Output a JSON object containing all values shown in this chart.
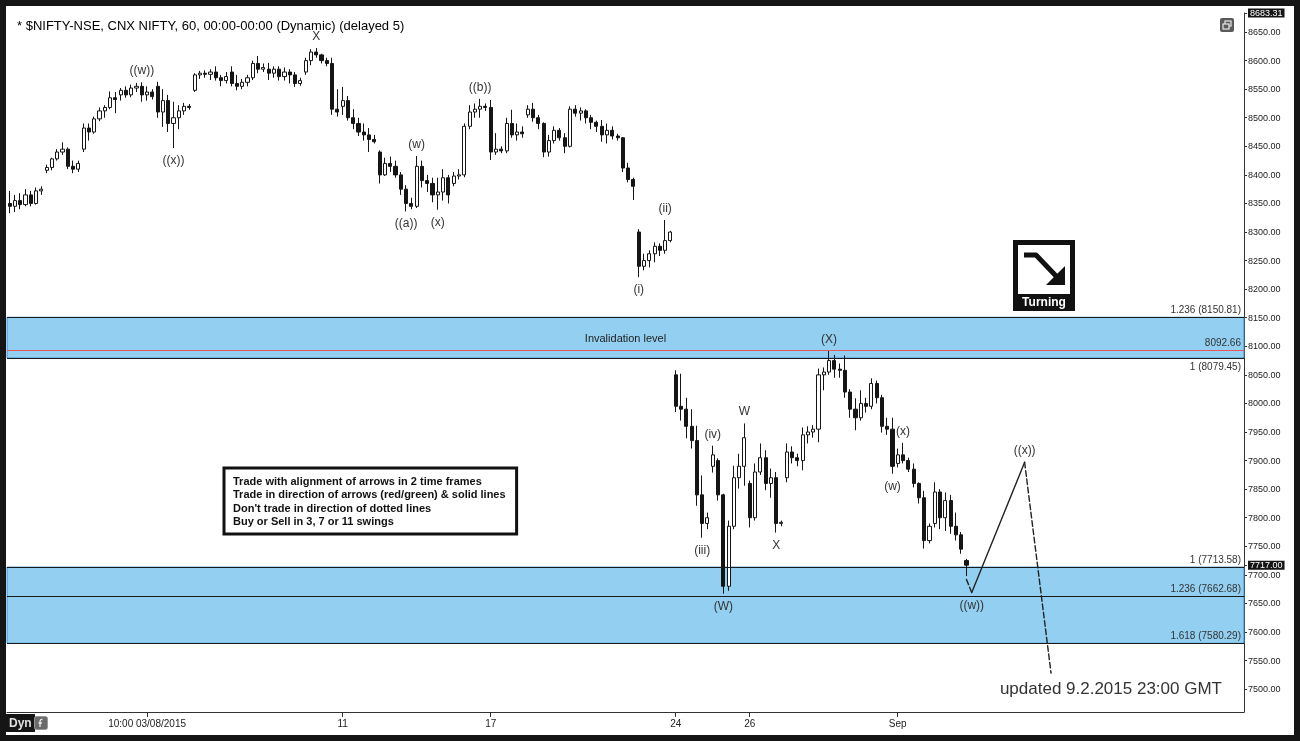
{
  "chart_data": {
    "type": "candlestick",
    "title": "* $NIFTY-NSE, CNX NIFTY, 60, 00:00-00:00 (Dynamic) (delayed 5)",
    "color": "#151515",
    "categories": [
      null,
      null,
      null,
      null,
      null,
      null,
      null,
      null,
      null,
      null,
      null,
      null,
      null,
      null,
      null,
      null,
      null,
      null,
      null,
      null,
      null,
      null,
      null,
      null,
      null,
      null,
      "10:00 03/08/2015",
      null,
      null,
      null,
      null,
      null,
      null,
      null,
      null,
      null,
      null,
      null,
      null,
      null,
      null,
      null,
      null,
      null,
      null,
      null,
      null,
      null,
      null,
      null,
      null,
      null,
      null,
      null,
      null,
      null,
      null,
      null,
      null,
      null,
      null,
      null,
      null,
      "11",
      null,
      null,
      null,
      null,
      null,
      null,
      null,
      null,
      null,
      null,
      null,
      null,
      null,
      null,
      null,
      null,
      null,
      null,
      null,
      null,
      null,
      null,
      null,
      null,
      null,
      null,
      null,
      "17",
      null,
      null,
      null,
      null,
      null,
      null,
      null,
      null,
      null,
      null,
      null,
      null,
      null,
      null,
      null,
      null,
      null,
      null,
      null,
      null,
      null,
      null,
      null,
      null,
      null,
      null,
      null,
      null,
      null,
      null,
      null,
      null,
      null,
      null,
      "24",
      null,
      null,
      null,
      null,
      null,
      null,
      null,
      null,
      null,
      null,
      null,
      null,
      null,
      "26",
      null,
      null,
      null,
      null,
      null,
      null,
      null,
      null,
      null,
      null,
      null,
      null,
      null,
      null,
      null,
      null,
      null,
      null,
      null,
      null,
      null,
      null,
      null,
      null,
      null,
      null,
      null,
      "Sep",
      null,
      null,
      null,
      null,
      null,
      null,
      null,
      null,
      null,
      null,
      null,
      null,
      null,
      null,
      null,
      null,
      null,
      null,
      null,
      null,
      null,
      null,
      null,
      null,
      null,
      null,
      null,
      null,
      null,
      null,
      null,
      null,
      null,
      null,
      null,
      null,
      null,
      null,
      null,
      null,
      null,
      null,
      null,
      null,
      null,
      null,
      null,
      null,
      null,
      null,
      null,
      null,
      null,
      null,
      null,
      null,
      null,
      null,
      null,
      null,
      null,
      null,
      null,
      null,
      null
    ],
    "ohlc": [
      [
        8350,
        8372,
        8333,
        8345
      ],
      [
        8345,
        8365,
        8335,
        8355
      ],
      [
        8355,
        8368,
        8340,
        8348
      ],
      [
        8348,
        8375,
        8345,
        8365
      ],
      [
        8365,
        8372,
        8345,
        8350
      ],
      [
        8350,
        8378,
        8348,
        8372
      ],
      [
        8372,
        8380,
        8365,
        8375
      ],
      [
        8408,
        8418,
        8403,
        8413
      ],
      [
        8413,
        8430,
        8408,
        8428
      ],
      [
        8428,
        8445,
        8425,
        8440
      ],
      [
        8440,
        8457,
        8435,
        8445
      ],
      [
        8445,
        8448,
        8410,
        8415
      ],
      [
        8415,
        8425,
        8403,
        8410
      ],
      [
        8410,
        8425,
        8405,
        8420
      ],
      [
        8445,
        8490,
        8440,
        8482
      ],
      [
        8482,
        8490,
        8460,
        8475
      ],
      [
        8475,
        8502,
        8472,
        8498
      ],
      [
        8498,
        8518,
        8494,
        8512
      ],
      [
        8512,
        8522,
        8500,
        8518
      ],
      [
        8518,
        8546,
        8515,
        8535
      ],
      [
        8535,
        8545,
        8508,
        8532
      ],
      [
        8540,
        8552,
        8530,
        8548
      ],
      [
        8548,
        8555,
        8535,
        8540
      ],
      [
        8540,
        8558,
        8536,
        8552
      ],
      [
        8552,
        8561,
        8545,
        8555
      ],
      [
        8555,
        8562,
        8528,
        8540
      ],
      [
        8540,
        8555,
        8530,
        8545
      ],
      [
        8545,
        8550,
        8532,
        8537
      ],
      [
        8555,
        8563,
        8500,
        8510
      ],
      [
        8510,
        8550,
        8484,
        8530
      ],
      [
        8530,
        8540,
        8475,
        8490
      ],
      [
        8490,
        8528,
        8447,
        8500
      ],
      [
        8500,
        8522,
        8480,
        8512
      ],
      [
        8512,
        8526,
        8505,
        8520
      ],
      [
        8520,
        8524,
        8514,
        8518
      ],
      [
        8548,
        8578,
        8545,
        8575
      ],
      [
        8575,
        8582,
        8568,
        8578
      ],
      [
        8578,
        8583,
        8570,
        8576
      ],
      [
        8576,
        8585,
        8566,
        8580
      ],
      [
        8580,
        8590,
        8565,
        8570
      ],
      [
        8570,
        8575,
        8555,
        8565
      ],
      [
        8565,
        8580,
        8560,
        8572
      ],
      [
        8580,
        8590,
        8555,
        8560
      ],
      [
        8560,
        8575,
        8548,
        8555
      ],
      [
        8555,
        8568,
        8550,
        8562
      ],
      [
        8562,
        8575,
        8555,
        8570
      ],
      [
        8570,
        8600,
        8566,
        8595
      ],
      [
        8595,
        8608,
        8578,
        8585
      ],
      [
        8585,
        8595,
        8580,
        8588
      ],
      [
        8585,
        8596,
        8566,
        8578
      ],
      [
        8578,
        8590,
        8570,
        8585
      ],
      [
        8585,
        8590,
        8565,
        8572
      ],
      [
        8572,
        8588,
        8565,
        8580
      ],
      [
        8580,
        8585,
        8560,
        8575
      ],
      [
        8575,
        8580,
        8554,
        8560
      ],
      [
        8560,
        8570,
        8556,
        8565
      ],
      [
        8580,
        8605,
        8575,
        8600
      ],
      [
        8600,
        8620,
        8592,
        8615
      ],
      [
        8615,
        8622,
        8605,
        8610
      ],
      [
        8610,
        8612,
        8595,
        8600
      ],
      [
        8600,
        8605,
        8590,
        8595
      ],
      [
        8595,
        8605,
        8505,
        8515
      ],
      [
        8515,
        8550,
        8502,
        8510
      ],
      [
        8520,
        8554,
        8505,
        8530
      ],
      [
        8530,
        8538,
        8495,
        8500
      ],
      [
        8500,
        8515,
        8480,
        8490
      ],
      [
        8490,
        8500,
        8468,
        8475
      ],
      [
        8475,
        8490,
        8460,
        8470
      ],
      [
        8470,
        8482,
        8440,
        8462
      ],
      [
        8462,
        8470,
        8455,
        8458
      ],
      [
        8440,
        8443,
        8385,
        8400
      ],
      [
        8400,
        8430,
        8398,
        8420
      ],
      [
        8420,
        8432,
        8405,
        8415
      ],
      [
        8415,
        8425,
        8395,
        8400
      ],
      [
        8400,
        8405,
        8365,
        8375
      ],
      [
        8375,
        8382,
        8336,
        8350
      ],
      [
        8350,
        8360,
        8340,
        8345
      ],
      [
        8345,
        8433,
        8342,
        8415
      ],
      [
        8415,
        8425,
        8378,
        8390
      ],
      [
        8390,
        8400,
        8370,
        8385
      ],
      [
        8385,
        8395,
        8352,
        8365
      ],
      [
        8365,
        8395,
        8339,
        8370
      ],
      [
        8370,
        8410,
        8355,
        8395
      ],
      [
        8395,
        8400,
        8350,
        8365
      ],
      [
        8385,
        8405,
        8380,
        8398
      ],
      [
        8398,
        8410,
        8392,
        8400
      ],
      [
        8400,
        8490,
        8396,
        8485
      ],
      [
        8485,
        8522,
        8480,
        8510
      ],
      [
        8510,
        8525,
        8500,
        8515
      ],
      [
        8515,
        8533,
        8500,
        8520
      ],
      [
        8520,
        8525,
        8512,
        8518
      ],
      [
        8518,
        8531,
        8426,
        8440
      ],
      [
        8440,
        8473,
        8435,
        8445
      ],
      [
        8445,
        8450,
        8438,
        8442
      ],
      [
        8442,
        8500,
        8438,
        8490
      ],
      [
        8490,
        8514,
        8465,
        8470
      ],
      [
        8470,
        8490,
        8460,
        8475
      ],
      [
        8475,
        8485,
        8465,
        8472
      ],
      [
        8505,
        8522,
        8500,
        8515
      ],
      [
        8515,
        8526,
        8493,
        8500
      ],
      [
        8500,
        8505,
        8480,
        8490
      ],
      [
        8490,
        8492,
        8431,
        8440
      ],
      [
        8440,
        8470,
        8432,
        8460
      ],
      [
        8460,
        8485,
        8455,
        8478
      ],
      [
        8478,
        8482,
        8460,
        8465
      ],
      [
        8465,
        8473,
        8438,
        8450
      ],
      [
        8450,
        8520,
        8448,
        8515
      ],
      [
        8515,
        8522,
        8502,
        8508
      ],
      [
        8508,
        8518,
        8495,
        8512
      ],
      [
        8512,
        8515,
        8490,
        8500
      ],
      [
        8500,
        8505,
        8480,
        8492
      ],
      [
        8492,
        8495,
        8475,
        8485
      ],
      [
        8485,
        8496,
        8458,
        8470
      ],
      [
        8470,
        8490,
        8455,
        8478
      ],
      [
        8478,
        8485,
        8462,
        8468
      ],
      [
        8468,
        8472,
        8460,
        8465
      ],
      [
        8465,
        8466,
        8405,
        8412
      ],
      [
        8412,
        8421,
        8387,
        8392
      ],
      [
        8392,
        8395,
        8356,
        8380
      ],
      [
        8300,
        8305,
        8221,
        8240
      ],
      [
        8240,
        8262,
        8233,
        8250
      ],
      [
        8250,
        8268,
        8238,
        8262
      ],
      [
        8262,
        8282,
        8247,
        8275
      ],
      [
        8275,
        8280,
        8258,
        8268
      ],
      [
        8268,
        8321,
        8262,
        8285
      ],
      [
        8285,
        8302,
        8282,
        8300
      ],
      [
        8050,
        8058,
        7985,
        7995
      ],
      [
        7995,
        8052,
        7970,
        7990
      ],
      [
        7990,
        8010,
        7939,
        7960
      ],
      [
        7960,
        7990,
        7921,
        7935
      ],
      [
        7935,
        7961,
        7821,
        7840
      ],
      [
        7840,
        7874,
        7765,
        7790
      ],
      [
        7790,
        7809,
        7780,
        7800
      ],
      [
        7890,
        7926,
        7879,
        7910
      ],
      [
        7900,
        7904,
        7830,
        7840
      ],
      [
        7840,
        7842,
        7667,
        7680
      ],
      [
        7680,
        7795,
        7672,
        7785
      ],
      [
        7785,
        7891,
        7780,
        7870
      ],
      [
        7870,
        7912,
        7851,
        7890
      ],
      [
        7890,
        7965,
        7856,
        7940
      ],
      [
        7860,
        7865,
        7783,
        7800
      ],
      [
        7800,
        7895,
        7795,
        7880
      ],
      [
        7880,
        7930,
        7875,
        7905
      ],
      [
        7905,
        7918,
        7848,
        7860
      ],
      [
        7860,
        7886,
        7835,
        7870
      ],
      [
        7870,
        7880,
        7774,
        7790
      ],
      [
        7790,
        7795,
        7785,
        7792
      ],
      [
        7870,
        7930,
        7862,
        7915
      ],
      [
        7915,
        7925,
        7895,
        7905
      ],
      [
        7905,
        7912,
        7890,
        7900
      ],
      [
        7900,
        7958,
        7883,
        7945
      ],
      [
        7945,
        7960,
        7930,
        7950
      ],
      [
        7950,
        7962,
        7940,
        7955
      ],
      [
        7955,
        8061,
        7932,
        8050
      ],
      [
        8050,
        8063,
        8023,
        8055
      ],
      [
        8055,
        8092,
        8050,
        8075
      ],
      [
        8075,
        8085,
        8045,
        8060
      ],
      [
        8060,
        8070,
        8045,
        8058
      ],
      [
        8058,
        8084,
        8010,
        8020
      ],
      [
        8020,
        8025,
        7975,
        7990
      ],
      [
        7990,
        8009,
        7953,
        7975
      ],
      [
        7975,
        8023,
        7970,
        8000
      ],
      [
        8000,
        8010,
        7984,
        7995
      ],
      [
        7995,
        8044,
        7990,
        8035
      ],
      [
        8035,
        8040,
        8000,
        8010
      ],
      [
        8010,
        8015,
        7949,
        7960
      ],
      [
        7960,
        7975,
        7945,
        7955
      ],
      [
        7955,
        7975,
        7877,
        7890
      ],
      [
        7895,
        7921,
        7888,
        7910
      ],
      [
        7910,
        7931,
        7895,
        7900
      ],
      [
        7900,
        7905,
        7880,
        7885
      ],
      [
        7885,
        7895,
        7853,
        7860
      ],
      [
        7860,
        7862,
        7825,
        7835
      ],
      [
        7835,
        7847,
        7746,
        7760
      ],
      [
        7760,
        7790,
        7755,
        7785
      ],
      [
        7790,
        7862,
        7783,
        7845
      ],
      [
        7845,
        7850,
        7780,
        7800
      ],
      [
        7800,
        7844,
        7777,
        7830
      ],
      [
        7830,
        7840,
        7772,
        7785
      ],
      [
        7785,
        7809,
        7760,
        7770
      ],
      [
        7770,
        7775,
        7737,
        7745
      ],
      [
        7725,
        7728,
        7698,
        7717
      ],
      null,
      null,
      null,
      null,
      null,
      null,
      null,
      null,
      null,
      null,
      null,
      null,
      null,
      null,
      null,
      null,
      null,
      null,
      null,
      null,
      null,
      null,
      null,
      null,
      null,
      null,
      null,
      null,
      null,
      null,
      null,
      null,
      null,
      null,
      null,
      null,
      null,
      null,
      null,
      null,
      null,
      null,
      null,
      null,
      null,
      null,
      null,
      null,
      null,
      null,
      null,
      null
    ],
    "series": [
      {
        "type": "line",
        "color": "#222222",
        "line_style": "dashed",
        "values": [
          null,
          null,
          null,
          null,
          null,
          null,
          null,
          null,
          null,
          null,
          null,
          null,
          null,
          null,
          null,
          null,
          null,
          null,
          null,
          null,
          null,
          null,
          null,
          null,
          null,
          null,
          null,
          null,
          null,
          null,
          null,
          null,
          null,
          null,
          null,
          null,
          null,
          null,
          null,
          null,
          null,
          null,
          null,
          null,
          null,
          null,
          null,
          null,
          null,
          null,
          null,
          null,
          null,
          null,
          null,
          null,
          null,
          null,
          null,
          null,
          null,
          null,
          null,
          null,
          null,
          null,
          null,
          null,
          null,
          null,
          null,
          null,
          null,
          null,
          null,
          null,
          null,
          null,
          null,
          null,
          null,
          null,
          null,
          null,
          null,
          null,
          null,
          null,
          null,
          null,
          null,
          null,
          null,
          null,
          null,
          null,
          null,
          null,
          null,
          null,
          null,
          null,
          null,
          null,
          null,
          null,
          null,
          null,
          null,
          null,
          null,
          null,
          null,
          null,
          null,
          null,
          null,
          null,
          null,
          null,
          null,
          null,
          null,
          null,
          null,
          null,
          null,
          null,
          null,
          null,
          null,
          null,
          null,
          null,
          null,
          null,
          null,
          null,
          null,
          null,
          null,
          null,
          null,
          null,
          null,
          null,
          null,
          null,
          null,
          null,
          null,
          null,
          null,
          null,
          null,
          null,
          null,
          null,
          null,
          null,
          null,
          null,
          null,
          null,
          null,
          null,
          null,
          null,
          null,
          null,
          null,
          null,
          null,
          null,
          null,
          null,
          null,
          null,
          null,
          null,
          null,
          7692,
          7669,
          null,
          null,
          null,
          null,
          null,
          null,
          null,
          null,
          null,
          null,
          null,
          null,
          null,
          null,
          null,
          null,
          null,
          null,
          null,
          null,
          null,
          null,
          null,
          null,
          null,
          null,
          null,
          null,
          null,
          null,
          null,
          null,
          null,
          null,
          null,
          null,
          null,
          null,
          null,
          null,
          null,
          null,
          null,
          null,
          null,
          null,
          null,
          null,
          null,
          null,
          null
        ]
      },
      {
        "type": "line",
        "color": "#222222",
        "line_style": "solid",
        "values": [
          null,
          null,
          null,
          null,
          null,
          null,
          null,
          null,
          null,
          null,
          null,
          null,
          null,
          null,
          null,
          null,
          null,
          null,
          null,
          null,
          null,
          null,
          null,
          null,
          null,
          null,
          null,
          null,
          null,
          null,
          null,
          null,
          null,
          null,
          null,
          null,
          null,
          null,
          null,
          null,
          null,
          null,
          null,
          null,
          null,
          null,
          null,
          null,
          null,
          null,
          null,
          null,
          null,
          null,
          null,
          null,
          null,
          null,
          null,
          null,
          null,
          null,
          null,
          null,
          null,
          null,
          null,
          null,
          null,
          null,
          null,
          null,
          null,
          null,
          null,
          null,
          null,
          null,
          null,
          null,
          null,
          null,
          null,
          null,
          null,
          null,
          null,
          null,
          null,
          null,
          null,
          null,
          null,
          null,
          null,
          null,
          null,
          null,
          null,
          null,
          null,
          null,
          null,
          null,
          null,
          null,
          null,
          null,
          null,
          null,
          null,
          null,
          null,
          null,
          null,
          null,
          null,
          null,
          null,
          null,
          null,
          null,
          null,
          null,
          null,
          null,
          null,
          null,
          null,
          null,
          null,
          null,
          null,
          null,
          null,
          null,
          null,
          null,
          null,
          null,
          null,
          null,
          null,
          null,
          null,
          null,
          null,
          null,
          null,
          null,
          null,
          null,
          null,
          null,
          null,
          null,
          null,
          null,
          null,
          null,
          null,
          null,
          null,
          null,
          null,
          null,
          null,
          null,
          null,
          null,
          null,
          null,
          null,
          null,
          null,
          null,
          null,
          null,
          null,
          null,
          null,
          null,
          7669,
          null,
          null,
          null,
          null,
          null,
          null,
          null,
          null,
          null,
          7897,
          null,
          null,
          null,
          null,
          null,
          null,
          null,
          null,
          null,
          null,
          null,
          null,
          null,
          null,
          null,
          null,
          null,
          null,
          null,
          null,
          null,
          null,
          null,
          null,
          null,
          null,
          null,
          null,
          null,
          null,
          null,
          null,
          null,
          null,
          null,
          null,
          null,
          null,
          null,
          null,
          null
        ]
      },
      {
        "type": "line",
        "color": "#222222",
        "line_style": "dashed",
        "values": [
          null,
          null,
          null,
          null,
          null,
          null,
          null,
          null,
          null,
          null,
          null,
          null,
          null,
          null,
          null,
          null,
          null,
          null,
          null,
          null,
          null,
          null,
          null,
          null,
          null,
          null,
          null,
          null,
          null,
          null,
          null,
          null,
          null,
          null,
          null,
          null,
          null,
          null,
          null,
          null,
          null,
          null,
          null,
          null,
          null,
          null,
          null,
          null,
          null,
          null,
          null,
          null,
          null,
          null,
          null,
          null,
          null,
          null,
          null,
          null,
          null,
          null,
          null,
          null,
          null,
          null,
          null,
          null,
          null,
          null,
          null,
          null,
          null,
          null,
          null,
          null,
          null,
          null,
          null,
          null,
          null,
          null,
          null,
          null,
          null,
          null,
          null,
          null,
          null,
          null,
          null,
          null,
          null,
          null,
          null,
          null,
          null,
          null,
          null,
          null,
          null,
          null,
          null,
          null,
          null,
          null,
          null,
          null,
          null,
          null,
          null,
          null,
          null,
          null,
          null,
          null,
          null,
          null,
          null,
          null,
          null,
          null,
          null,
          null,
          null,
          null,
          null,
          null,
          null,
          null,
          null,
          null,
          null,
          null,
          null,
          null,
          null,
          null,
          null,
          null,
          null,
          null,
          null,
          null,
          null,
          null,
          null,
          null,
          null,
          null,
          null,
          null,
          null,
          null,
          null,
          null,
          null,
          null,
          null,
          null,
          null,
          null,
          null,
          null,
          null,
          null,
          null,
          null,
          null,
          null,
          null,
          null,
          null,
          null,
          null,
          null,
          null,
          null,
          null,
          null,
          null,
          null,
          null,
          null,
          null,
          null,
          null,
          null,
          null,
          null,
          null,
          null,
          7897,
          null,
          null,
          null,
          null,
          7528,
          null,
          null,
          null,
          null,
          null,
          null,
          null,
          null,
          null,
          null,
          null,
          null,
          null,
          null,
          null,
          null,
          null,
          null,
          null,
          null,
          null,
          null,
          null,
          null,
          null,
          null,
          null,
          null,
          null,
          null,
          null,
          null,
          null,
          null,
          null,
          null
        ]
      }
    ],
    "marker": "none",
    "ylim": [
      7460,
      8683.31
    ],
    "yticks": [
      {
        "value": 7500,
        "label": "7500.00"
      },
      {
        "value": 7550,
        "label": "7550.00"
      },
      {
        "value": 7600,
        "label": "7600.00"
      },
      {
        "value": 7650,
        "label": "7650.00"
      },
      {
        "value": 7700,
        "label": "7700.00"
      },
      {
        "value": 7717,
        "label": "7717.00"
      },
      {
        "value": 7750,
        "label": "7750.00"
      },
      {
        "value": 7800,
        "label": "7800.00"
      },
      {
        "value": 7850,
        "label": "7850.00"
      },
      {
        "value": 7900,
        "label": "7900.00"
      },
      {
        "value": 7950,
        "label": "7950.00"
      },
      {
        "value": 8000,
        "label": "8000.00"
      },
      {
        "value": 8050,
        "label": "8050.00"
      },
      {
        "value": 8100,
        "label": "8100.00"
      },
      {
        "value": 8150,
        "label": "8150.00"
      },
      {
        "value": 8200,
        "label": "8200.00"
      },
      {
        "value": 8250,
        "label": "8250.00"
      },
      {
        "value": 8300,
        "label": "8300.00"
      },
      {
        "value": 8350,
        "label": "8350.00"
      },
      {
        "value": 8400,
        "label": "8400.00"
      },
      {
        "value": 8450,
        "label": "8450.00"
      },
      {
        "value": 8500,
        "label": "8500.00"
      },
      {
        "value": 8550,
        "label": "8550.00"
      },
      {
        "value": 8600,
        "label": "8600.00"
      },
      {
        "value": 8650,
        "label": "8650.00"
      },
      8683.31
    ],
    "ref_lines": [
      {
        "axis": "y",
        "value": 8150.81,
        "label": "1.236 (8150.81)",
        "color": "#1a1a1a"
      },
      {
        "axis": "y",
        "value": 8092.66,
        "label": "8092.66",
        "color": "#e8585a"
      },
      {
        "axis": "y",
        "value": 8079.45,
        "label": "1 (8079.45)",
        "color": "#1a1a1a"
      },
      {
        "axis": "y",
        "value": 7713.58,
        "label": "1 (7713.58)",
        "color": "#1a1a1a"
      },
      {
        "axis": "y",
        "value": 7662.68,
        "label": "1.236 (7662.68)",
        "color": "#1a1a1a"
      },
      {
        "axis": "y",
        "value": 7580.29,
        "label": "1.618 (7580.29)",
        "color": "#1a1a1a"
      }
    ],
    "bands": [
      {
        "axis": "y",
        "from": 8079.45,
        "to": 8150.81,
        "label": "Invalidation level",
        "color": "#92cff0"
      },
      {
        "axis": "y",
        "from": 7580.29,
        "to": 7713.58,
        "color": "#92cff0"
      }
    ],
    "annotations": [
      {
        "text": "((w))",
        "y": 8562
      },
      {
        "text": "((x))",
        "y": 8447
      },
      {
        "text": "X",
        "y": 8622
      },
      {
        "text": "((a))",
        "y": 8336
      },
      {
        "text": "(w)",
        "y": 8433
      },
      {
        "text": "(x)",
        "y": 8339
      },
      {
        "text": "((b))",
        "y": 8533
      },
      {
        "text": "(i)",
        "y": 8221
      },
      {
        "text": "(ii)",
        "y": 8321
      },
      {
        "text": "(iii)",
        "y": 7765
      },
      {
        "text": "(iv)",
        "y": 7926
      },
      {
        "text": "(W)",
        "y": 7667
      },
      {
        "text": "W",
        "y": 7965
      },
      {
        "text": "X",
        "y": 7774
      },
      {
        "text": "(X)",
        "y": 8092
      },
      {
        "text": "(w)",
        "y": 7877
      },
      {
        "text": "(x)",
        "y": 7931
      },
      {
        "text": "((w))",
        "y": 7669
      },
      {
        "text": "((x))",
        "y": 7897
      },
      "Turning",
      "Trade with alignment of arrows in 2 time frames",
      "Trade in direction of arrows (red/green) & solid lines",
      "Don't trade in direction of dotted lines",
      "Buy or Sell in 3, 7 or 11 swings",
      "updated 9.2.2015 23:00 GMT",
      "Dyn"
    ]
  }
}
